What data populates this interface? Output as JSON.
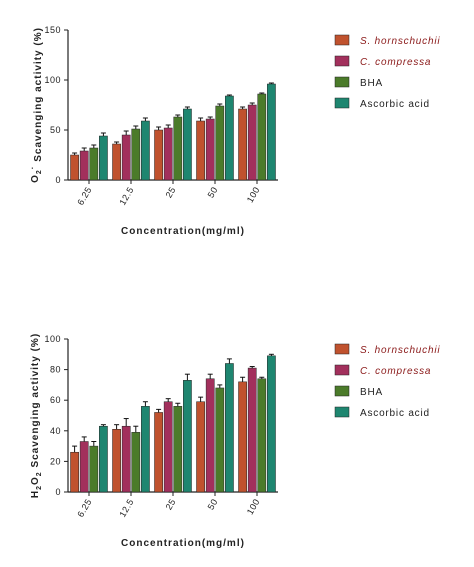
{
  "colors": {
    "s_hornschuchii": "#c0522e",
    "c_compressa": "#a2305c",
    "bha": "#4b7b2a",
    "ascorbic_acid": "#1e8670",
    "axis": "#222222",
    "error_bar": "#111111"
  },
  "chart_data": [
    {
      "type": "bar",
      "ylabel_parts": [
        "O",
        "2",
        "·",
        " Scavenging activity (%)"
      ],
      "xlabel": "Concentration(mg/ml)",
      "ylim": [
        0,
        150
      ],
      "yticks": [
        "0",
        "50",
        "100",
        "150"
      ],
      "categories": [
        "6.25",
        "12.5",
        "25",
        "50",
        "100"
      ],
      "legend_position": "right",
      "series": [
        {
          "name": "S. hornschuchii",
          "italic": true,
          "values": [
            25,
            36,
            50,
            59,
            71
          ],
          "errors": [
            2,
            2,
            3,
            3,
            2
          ]
        },
        {
          "name": "C. compressa",
          "italic": true,
          "values": [
            29,
            45,
            52,
            61,
            75
          ],
          "errors": [
            3,
            4,
            3,
            2,
            2
          ]
        },
        {
          "name": "BHA",
          "italic": false,
          "values": [
            32,
            51,
            63,
            74,
            86
          ],
          "errors": [
            3,
            3,
            2,
            2,
            1
          ]
        },
        {
          "name": "Ascorbic acid",
          "italic": false,
          "values": [
            44,
            59,
            71,
            84,
            96
          ],
          "errors": [
            3,
            3,
            2,
            1,
            1
          ]
        }
      ]
    },
    {
      "type": "bar",
      "ylabel_parts": [
        "H",
        "2",
        "O",
        "2",
        " Scavenging activity (%)"
      ],
      "xlabel": "Concentration(mg/ml)",
      "ylim": [
        0,
        100
      ],
      "yticks": [
        "0",
        "20",
        "40",
        "60",
        "80",
        "100"
      ],
      "categories": [
        "6.25",
        "12.5",
        "25",
        "50",
        "100"
      ],
      "legend_position": "right",
      "series": [
        {
          "name": "S. hornschuchii",
          "italic": true,
          "values": [
            26,
            41,
            52,
            59,
            72
          ],
          "errors": [
            4,
            3,
            2,
            3,
            3
          ]
        },
        {
          "name": "C. compressa",
          "italic": true,
          "values": [
            33,
            43,
            59,
            74,
            81
          ],
          "errors": [
            3,
            5,
            2,
            3,
            1
          ]
        },
        {
          "name": "BHA",
          "italic": false,
          "values": [
            30,
            39,
            56,
            68,
            74
          ],
          "errors": [
            3,
            4,
            2,
            2,
            1
          ]
        },
        {
          "name": "Ascorbic acid",
          "italic": false,
          "values": [
            43,
            56,
            73,
            84,
            89
          ],
          "errors": [
            1,
            3,
            4,
            3,
            1
          ]
        }
      ]
    }
  ]
}
